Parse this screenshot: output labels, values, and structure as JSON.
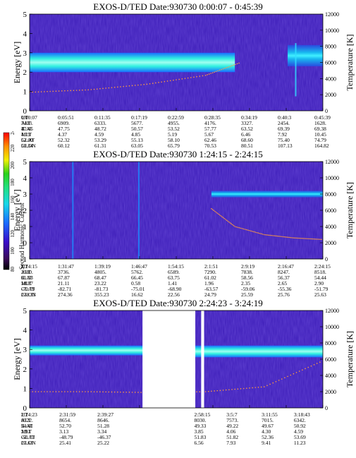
{
  "panels": [
    {
      "title": "EXOS-D/TED   Date:930730   0:00:07 - 0:45:39",
      "ylabel_left": "Energy [eV]",
      "ylabel_right": "Temperature [K]",
      "yticks_left": [
        "0",
        "1",
        "2",
        "3",
        "4",
        "5"
      ],
      "yticks_right": [
        "0",
        "2000",
        "4000",
        "6000",
        "8000",
        "10000",
        "12000"
      ],
      "rows": [
        {
          "label": "UT",
          "values": [
            "0:00:07",
            "0:05:51",
            "0:11:35",
            "0:17:19",
            "0:22:59",
            "0:28:35",
            "0:34:19",
            "0:40:3",
            "0:45:39"
          ]
        },
        {
          "label": "ALT",
          "values": [
            "7403.",
            "6909.",
            "6333.",
            "5677.",
            "4955.",
            "4176.",
            "3327.",
            "2454.",
            "1628."
          ]
        },
        {
          "label": "ILAT",
          "values": [
            "47.45",
            "47.75",
            "48.72",
            "50.57",
            "53.52",
            "57.77",
            "63.52",
            "69.39",
            "69.38"
          ]
        },
        {
          "label": "MLT",
          "values": [
            "4.19",
            "4.37",
            "4.59",
            "4.85",
            "5.19",
            "5.67",
            "6.46",
            "7.92",
            "10.45"
          ]
        },
        {
          "label": "GLAT",
          "values": [
            "52.00",
            "52.32",
            "53.29",
            "55.13",
            "58.10",
            "62.46",
            "68.60",
            "75.40",
            "74.79"
          ]
        },
        {
          "label": "GLON",
          "values": [
            "59.34",
            "60.12",
            "61.31",
            "63.05",
            "65.79",
            "70.53",
            "80.51",
            "107.13",
            "164.82"
          ]
        }
      ]
    },
    {
      "title": "EXOS-D/TED   Date:930730   1:24:15 - 2:24:15",
      "ylabel_left": "Energy [eV]",
      "ylabel_right": "Temperature [K]",
      "yticks_left": [
        "-1",
        "0",
        "1",
        "2",
        "3",
        "4",
        "5"
      ],
      "yticks_right": [
        "0",
        "2000",
        "4000",
        "6000",
        "8000",
        "10000",
        "12000"
      ],
      "rows": [
        {
          "label": "UT",
          "values": [
            "1:24:15",
            "1:31:47",
            "1:39:19",
            "1:46:47",
            "1:54:15",
            "2:1:51",
            "2:9:19",
            "2:16:47",
            "2:24:15"
          ]
        },
        {
          "label": "ALT",
          "values": [
            "2580.",
            "3736.",
            "4805.",
            "5762.",
            "6589.",
            "7290.",
            "7838.",
            "8247.",
            "8518."
          ]
        },
        {
          "label": "ILAT",
          "values": [
            "61.33",
            "67.87",
            "68.47",
            "66.45",
            "63.75",
            "61.02",
            "58.56",
            "56.37",
            "54.44"
          ]
        },
        {
          "label": "MLT",
          "values": [
            "18.87",
            "21.11",
            "23.22",
            "0.58",
            "1.41",
            "1.96",
            "2.35",
            "2.65",
            "2.90"
          ]
        },
        {
          "label": "GLAT",
          "values": [
            "-70.79",
            "-82.71",
            "-81.73",
            "-75.01",
            "-68.90",
            "-63.57",
            "-59.06",
            "-55.36",
            "-51.79"
          ]
        },
        {
          "label": "GLON",
          "values": [
            "238.33",
            "274.36",
            "355.23",
            "16.62",
            "22.56",
            "24.79",
            "25.59",
            "25.76",
            "25.63"
          ]
        }
      ]
    },
    {
      "title": "EXOS-D/TED   Date:930730   2:24:23 - 3:24:19",
      "ylabel_left": "Energy [eV]",
      "ylabel_right": "Temperature [K]",
      "yticks_left": [
        "0",
        "1",
        "2",
        "3",
        "4",
        "5"
      ],
      "yticks_right": [
        "0",
        "2000",
        "4000",
        "6000",
        "8000",
        "10000",
        "12000"
      ],
      "rows": [
        {
          "label": "UT",
          "values": [
            "2:24:23",
            "2:31:59",
            "2:39:27",
            "",
            "2:58:15",
            "3:5:7",
            "3:11:55",
            "3:18:43"
          ]
        },
        {
          "label": "ALT",
          "values": [
            "8522.",
            "8654.",
            "8646.",
            "",
            "8030.",
            "7573.",
            "7015.",
            "6342."
          ]
        },
        {
          "label": "ILAT",
          "values": [
            "54.41",
            "52.70",
            "51.28",
            "",
            "49.33",
            "49.22",
            "49.67",
            "50.92"
          ]
        },
        {
          "label": "MLT",
          "values": [
            "2.91",
            "3.13",
            "3.34",
            "",
            "3.85",
            "4.06",
            "4.30",
            "4.59"
          ]
        },
        {
          "label": "GLAT",
          "values": [
            "-51.73",
            "-48.79",
            "-46.37",
            "",
            "51.83",
            "51.82",
            "52.36",
            "53.69"
          ]
        },
        {
          "label": "GLON",
          "values": [
            "25.63",
            "25.41",
            "25.22",
            "",
            "6.56",
            "7.93",
            "9.41",
            "11.23"
          ]
        }
      ]
    }
  ],
  "colorbar": {
    "label": "Second Harmonic Current",
    "ticks": [
      "80",
      "100",
      "120",
      "140",
      "160",
      "180",
      "200",
      "220",
      "240"
    ]
  },
  "chart_data": [
    {
      "type": "heatmap",
      "title": "EXOS-D/TED Date:930730 0:00:07 - 0:45:39",
      "ylabel": "Energy [eV]",
      "y2label": "Temperature [K]",
      "ylim": [
        0,
        5
      ],
      "y2lim": [
        0,
        12000
      ],
      "bands": [
        {
          "x_start": 0.0,
          "x_end": 0.7,
          "e_low": 2.0,
          "e_high": 3.0,
          "level": 220
        },
        {
          "x_start": 0.88,
          "x_end": 1.0,
          "e_low": 2.3,
          "e_high": 3.4,
          "level": 160
        }
      ],
      "temperature_trace": {
        "x": [
          0.0,
          0.2,
          0.4,
          0.6,
          0.72
        ],
        "y": [
          2300,
          2600,
          3300,
          4400,
          6000
        ]
      }
    },
    {
      "type": "heatmap",
      "title": "EXOS-D/TED Date:930730 1:24:15 - 2:24:15",
      "ylabel": "Energy [eV]",
      "y2label": "Temperature [K]",
      "ylim": [
        -1,
        5
      ],
      "y2lim": [
        0,
        12000
      ],
      "bands": [
        {
          "x_start": 0.62,
          "x_end": 1.0,
          "e_low": 2.8,
          "e_high": 3.2,
          "level": 190
        }
      ],
      "temperature_trace": {
        "x": [
          0.62,
          0.7,
          0.8,
          0.9,
          1.0
        ],
        "y": [
          6200,
          4000,
          3000,
          2600,
          2400
        ]
      }
    },
    {
      "type": "heatmap",
      "title": "EXOS-D/TED Date:930730 2:24:23 - 3:24:19",
      "ylabel": "Energy [eV]",
      "y2label": "Temperature [K]",
      "ylim": [
        0,
        5
      ],
      "y2lim": [
        0,
        12000
      ],
      "bands": [
        {
          "x_start": 0.0,
          "x_end": 0.42,
          "e_low": 2.7,
          "e_high": 3.2,
          "level": 200
        },
        {
          "x_start": 0.56,
          "x_end": 1.0,
          "e_low": 2.6,
          "e_high": 3.2,
          "level": 200
        }
      ],
      "temperature_trace": {
        "x": [
          0.0,
          0.2,
          0.4,
          0.6,
          0.8,
          1.0
        ],
        "y": [
          2000,
          2000,
          1900,
          2000,
          2600,
          5800
        ]
      }
    }
  ]
}
